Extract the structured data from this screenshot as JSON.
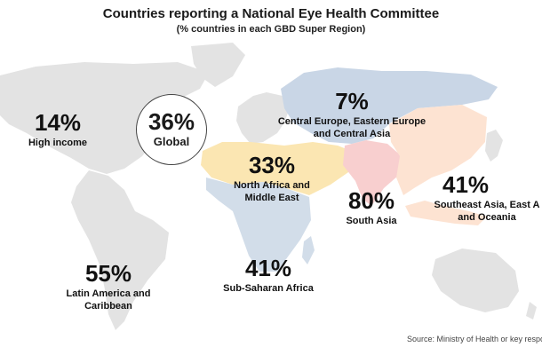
{
  "title": "Countries reporting a National Eye Health Committee",
  "subtitle": "(% countries in each GBD Super Region)",
  "source": "Source: Ministry of Health or key respo",
  "global": {
    "pct": "36%",
    "name": "Global"
  },
  "regions": [
    {
      "id": "high-income",
      "pct": "14%",
      "name": "High income",
      "color": "#e3e3e3"
    },
    {
      "id": "central-europe",
      "pct": "7%",
      "name": "Central Europe, Eastern Europe and Central Asia",
      "color": "#c9d6e6"
    },
    {
      "id": "north-africa",
      "pct": "33%",
      "name": "North Africa and Middle East",
      "color": "#fbe6b2"
    },
    {
      "id": "south-asia",
      "pct": "80%",
      "name": "South Asia",
      "color": "#f8cfcf"
    },
    {
      "id": "southeast-asia",
      "pct": "41%",
      "name": "Southeast Asia, East A and Oceania",
      "color": "#fde3d2"
    },
    {
      "id": "latin-america",
      "pct": "55%",
      "name": "Latin America and Caribbean",
      "color": "#e3e3e3"
    },
    {
      "id": "sub-saharan",
      "pct": "41%",
      "name": "Sub-Saharan Africa",
      "color": "#d2dde9"
    }
  ]
}
